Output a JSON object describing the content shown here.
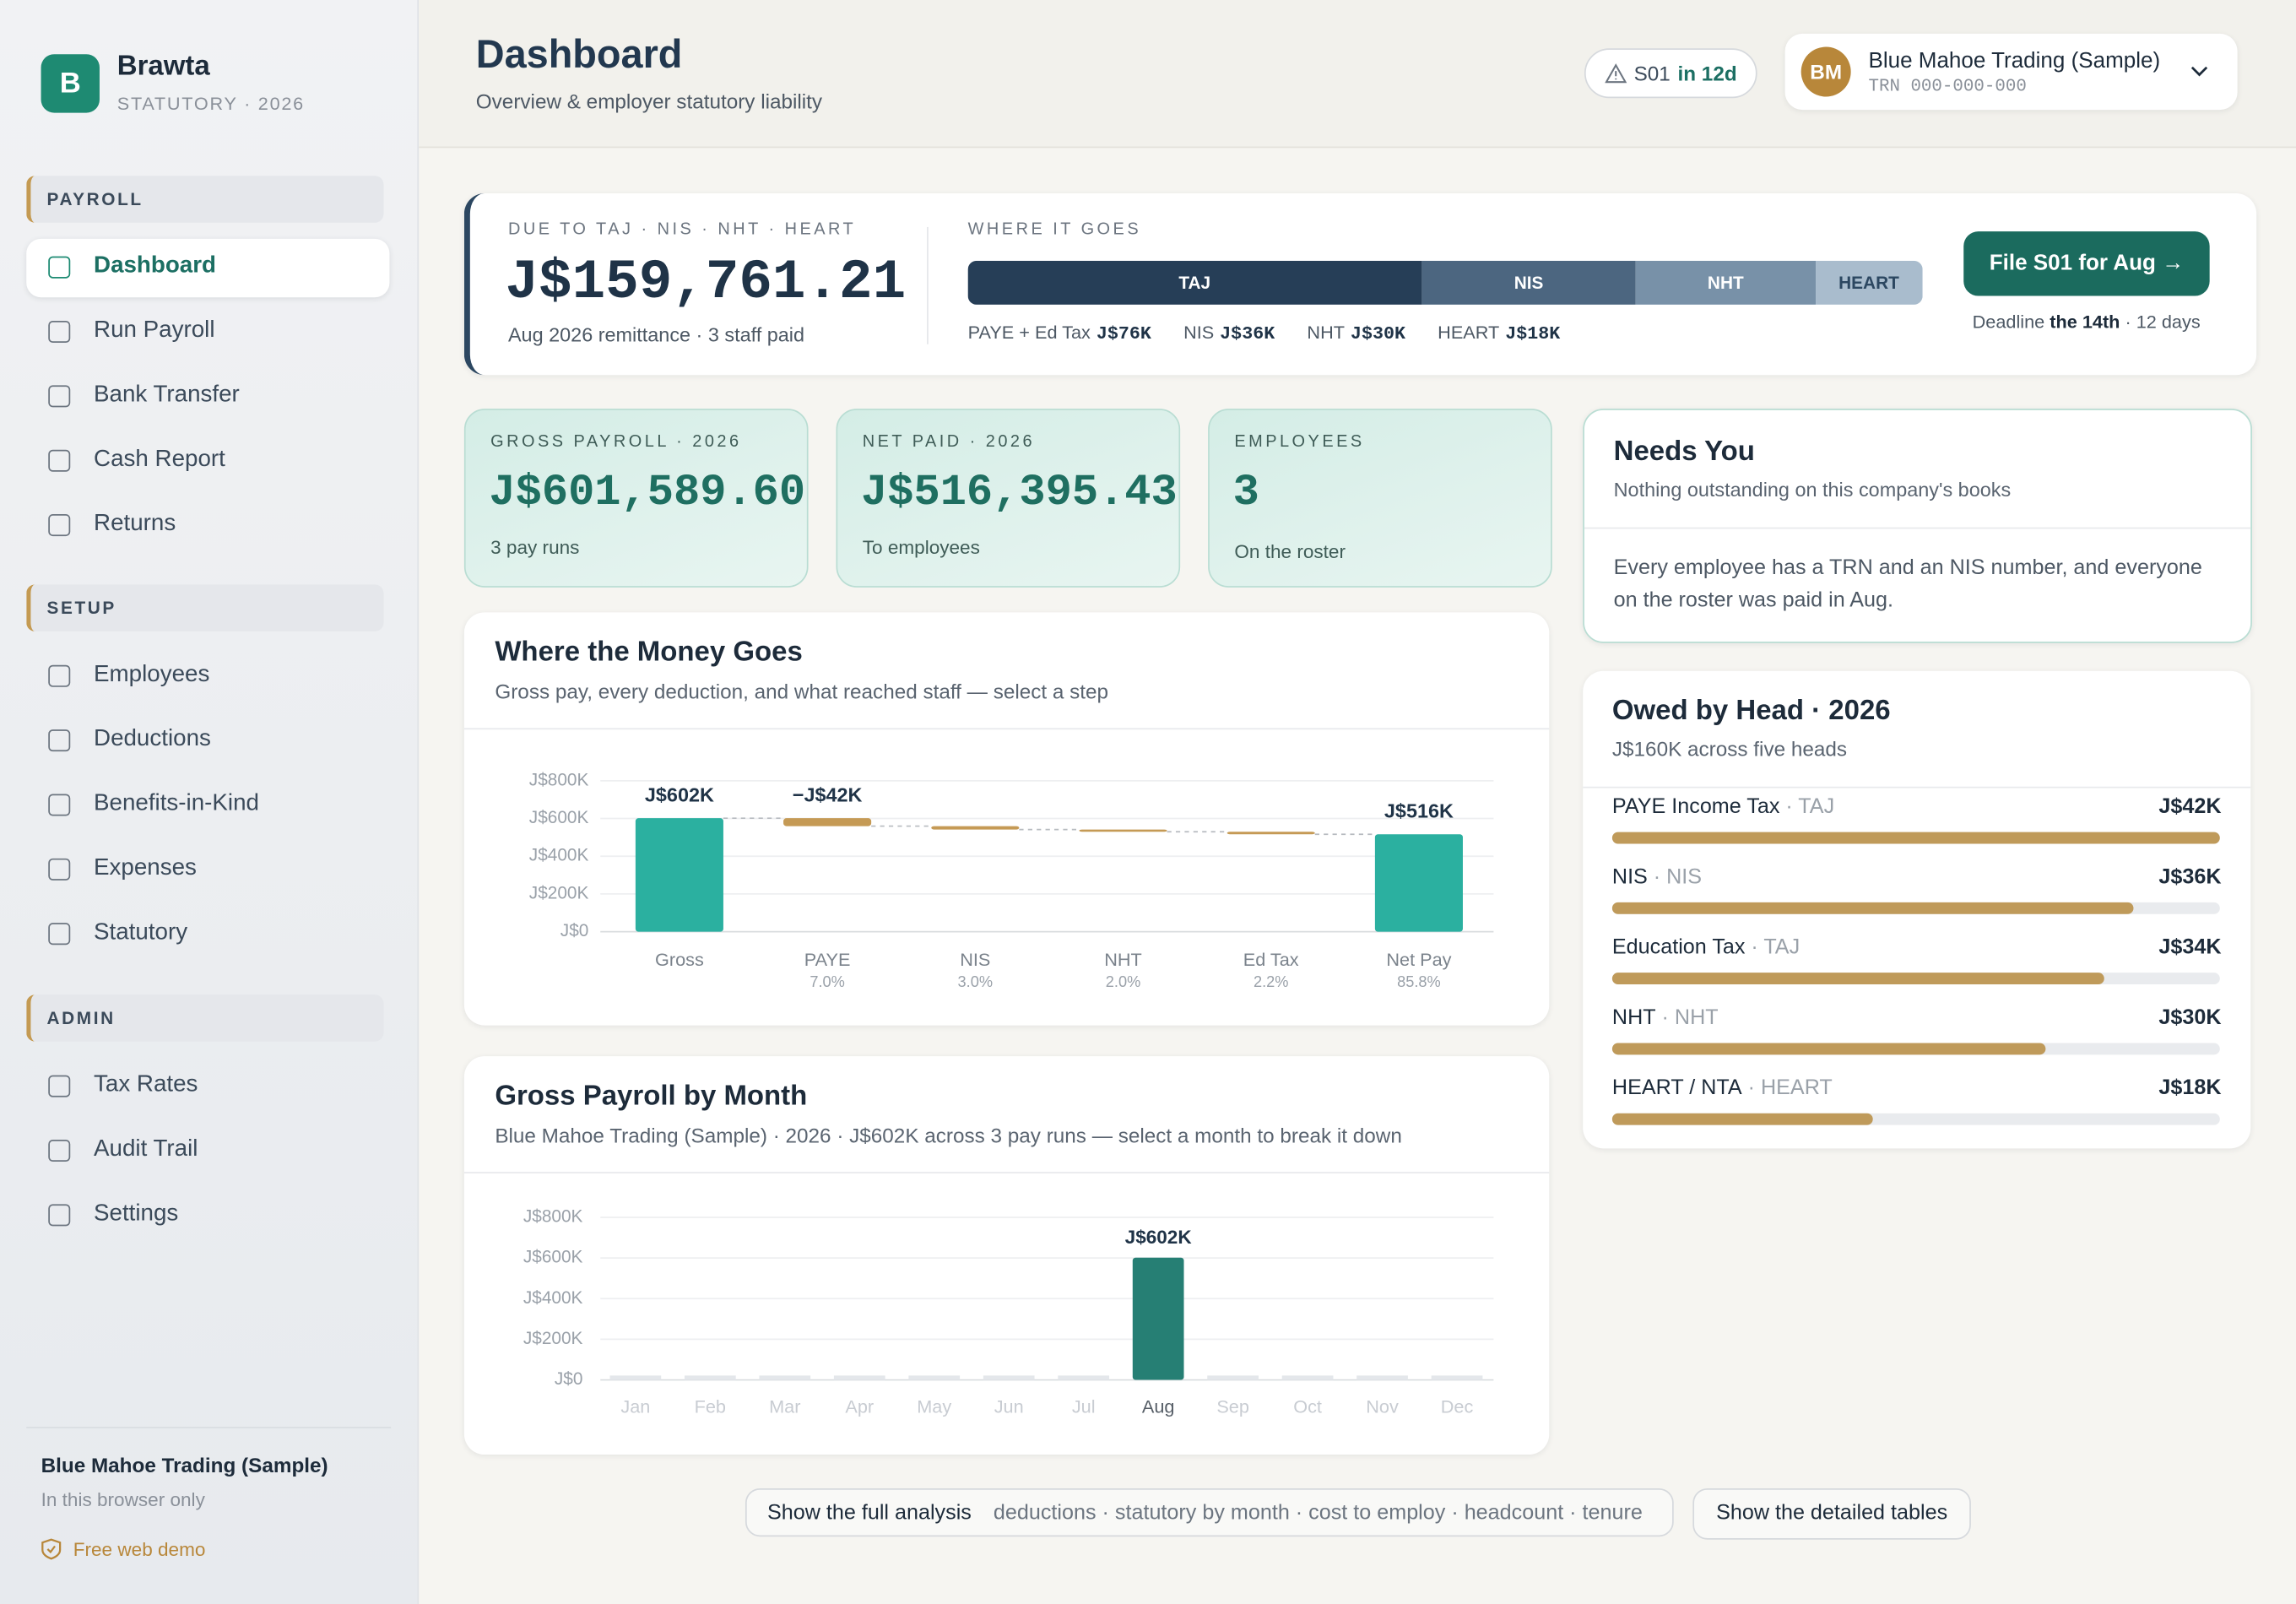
{
  "sidebar": {
    "logo": "B",
    "brand": "Brawta",
    "tagline": "STATUTORY · 2026",
    "sections": [
      {
        "title": "PAYROLL",
        "items": [
          "Dashboard",
          "Run Payroll",
          "Bank Transfer",
          "Cash Report",
          "Returns"
        ]
      },
      {
        "title": "SETUP",
        "items": [
          "Employees",
          "Deductions",
          "Benefits-in-Kind",
          "Expenses",
          "Statutory"
        ]
      },
      {
        "title": "ADMIN",
        "items": [
          "Tax Rates",
          "Audit Trail",
          "Settings"
        ]
      }
    ],
    "active": "Dashboard",
    "footer": {
      "company": "Blue Mahoe Trading (Sample)",
      "note": "In this browser only",
      "badge": "Free web demo"
    }
  },
  "header": {
    "title": "Dashboard",
    "subtitle": "Overview & employer statutory liability",
    "alert": {
      "form": "S01",
      "due": "in 12d"
    },
    "company": {
      "initials": "BM",
      "name": "Blue Mahoe Trading (Sample)",
      "trn": "TRN 000-000-000"
    }
  },
  "liability": {
    "label": "DUE TO TAJ · NIS · NHT · HEART",
    "amount": "J$159,761.21",
    "note": "Aug 2026 remittance · 3 staff paid",
    "split_label": "WHERE IT GOES",
    "segments": [
      {
        "name": "TAJ",
        "legend": "PAYE + Ed Tax",
        "value": 76,
        "value_label": "J$76K",
        "color": "#263e57"
      },
      {
        "name": "NIS",
        "legend": "NIS",
        "value": 36,
        "value_label": "J$36K",
        "color": "#4c6680"
      },
      {
        "name": "NHT",
        "legend": "NHT",
        "value": 30,
        "value_label": "J$30K",
        "color": "#7891a8"
      },
      {
        "name": "HEART",
        "legend": "HEART",
        "value": 18,
        "value_label": "J$18K",
        "color": "#a9bccd"
      }
    ],
    "action": "File S01 for Aug →",
    "deadline": [
      "Deadline",
      "the 14th",
      "· 12 days"
    ]
  },
  "kpis": [
    {
      "label": "GROSS PAYROLL · 2026",
      "value": "J$601,589.60",
      "note": "3 pay runs"
    },
    {
      "label": "NET PAID · 2026",
      "value": "J$516,395.43",
      "note": "To employees"
    },
    {
      "label": "EMPLOYEES",
      "value": "3",
      "note": "On the roster"
    }
  ],
  "needs_you": {
    "title": "Needs You",
    "subtitle": "Nothing outstanding on this company's books",
    "body": "Every employee has a TRN and an NIS number, and everyone on the roster was paid in Aug."
  },
  "waterfall": {
    "type": "waterfall",
    "title": "Where the Money Goes",
    "subtitle": "Gross pay, every deduction, and what reached staff — select a step",
    "categories": [
      "Gross",
      "PAYE",
      "NIS",
      "NHT",
      "Ed Tax",
      "Net Pay"
    ],
    "values": [
      601.6,
      -42,
      -18,
      -12,
      -13.2,
      516.4
    ],
    "value_labels": [
      "J$602K",
      "−J$42K",
      null,
      null,
      null,
      "J$516K"
    ],
    "shares": [
      null,
      "7.0%",
      "3.0%",
      "2.0%",
      "2.2%",
      "85.8%"
    ],
    "ylim": [
      0,
      800
    ],
    "yticks": [
      {
        "value": 0,
        "label": "J$0"
      },
      {
        "value": 200,
        "label": "J$200K"
      },
      {
        "value": 400,
        "label": "J$400K"
      },
      {
        "value": 600,
        "label": "J$600K"
      },
      {
        "value": 800,
        "label": "J$800K"
      }
    ],
    "colors": {
      "total": "#2bb0a0",
      "delta": "#c59a55"
    }
  },
  "monthly": {
    "type": "bar",
    "title": "Gross Payroll by Month",
    "subtitle": "Blue Mahoe Trading (Sample) · 2026 · J$602K across 3 pay runs — select a month to break it down",
    "categories": [
      "Jan",
      "Feb",
      "Mar",
      "Apr",
      "May",
      "Jun",
      "Jul",
      "Aug",
      "Sep",
      "Oct",
      "Nov",
      "Dec"
    ],
    "values": [
      0,
      0,
      0,
      0,
      0,
      0,
      0,
      601.6,
      0,
      0,
      0,
      0
    ],
    "value_labels": [
      null,
      null,
      null,
      null,
      null,
      null,
      null,
      "J$602K",
      null,
      null,
      null,
      null
    ],
    "ylim": [
      0,
      800
    ],
    "yticks": [
      {
        "value": 0,
        "label": "J$0"
      },
      {
        "value": 200,
        "label": "J$200K"
      },
      {
        "value": 400,
        "label": "J$400K"
      },
      {
        "value": 600,
        "label": "J$600K"
      },
      {
        "value": 800,
        "label": "J$800K"
      }
    ],
    "color": "#267f74"
  },
  "owed": {
    "title": "Owed by Head · 2026",
    "subtitle": "J$160K across five heads",
    "xlim": [
      0,
      42
    ],
    "color": "#bf9a5a",
    "rows": [
      {
        "name": "PAYE Income Tax",
        "agency": "· TAJ",
        "value": 42,
        "value_label": "J$42K"
      },
      {
        "name": "NIS",
        "agency": "· NIS",
        "value": 36,
        "value_label": "J$36K"
      },
      {
        "name": "Education Tax",
        "agency": "· TAJ",
        "value": 34,
        "value_label": "J$34K"
      },
      {
        "name": "NHT",
        "agency": "· NHT",
        "value": 30,
        "value_label": "J$30K"
      },
      {
        "name": "HEART / NTA",
        "agency": "· HEART",
        "value": 18,
        "value_label": "J$18K"
      }
    ]
  },
  "actions": {
    "primary": "Show the full analysis",
    "topics": "deductions · statutory by month · cost to employ · headcount · tenure",
    "secondary": "Show the detailed tables"
  }
}
